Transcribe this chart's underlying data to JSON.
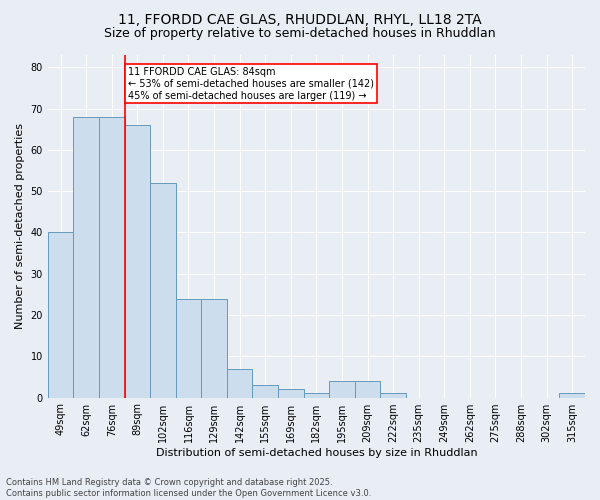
{
  "title_line1": "11, FFORDD CAE GLAS, RHUDDLAN, RHYL, LL18 2TA",
  "title_line2": "Size of property relative to semi-detached houses in Rhuddlan",
  "xlabel": "Distribution of semi-detached houses by size in Rhuddlan",
  "ylabel": "Number of semi-detached properties",
  "categories": [
    "49sqm",
    "62sqm",
    "76sqm",
    "89sqm",
    "102sqm",
    "116sqm",
    "129sqm",
    "142sqm",
    "155sqm",
    "169sqm",
    "182sqm",
    "195sqm",
    "209sqm",
    "222sqm",
    "235sqm",
    "249sqm",
    "262sqm",
    "275sqm",
    "288sqm",
    "302sqm",
    "315sqm"
  ],
  "values": [
    40,
    68,
    68,
    66,
    52,
    24,
    24,
    7,
    3,
    2,
    1,
    4,
    4,
    1,
    0,
    0,
    0,
    0,
    0,
    0,
    1
  ],
  "bar_color": "#ccdded",
  "bar_edge_color": "#6699bb",
  "vline_index": 2.5,
  "annotation_text": "11 FFORDD CAE GLAS: 84sqm\n← 53% of semi-detached houses are smaller (142)\n45% of semi-detached houses are larger (119) →",
  "annotation_box_color": "white",
  "annotation_box_edge_color": "red",
  "ylim": [
    0,
    83
  ],
  "yticks": [
    0,
    10,
    20,
    30,
    40,
    50,
    60,
    70,
    80
  ],
  "title_fontsize": 10,
  "subtitle_fontsize": 9,
  "label_fontsize": 8,
  "tick_fontsize": 7,
  "annotation_fontsize": 7,
  "footer_text": "Contains HM Land Registry data © Crown copyright and database right 2025.\nContains public sector information licensed under the Open Government Licence v3.0.",
  "bg_color": "#e8eef4",
  "plot_bg_color": "#e8eef4"
}
